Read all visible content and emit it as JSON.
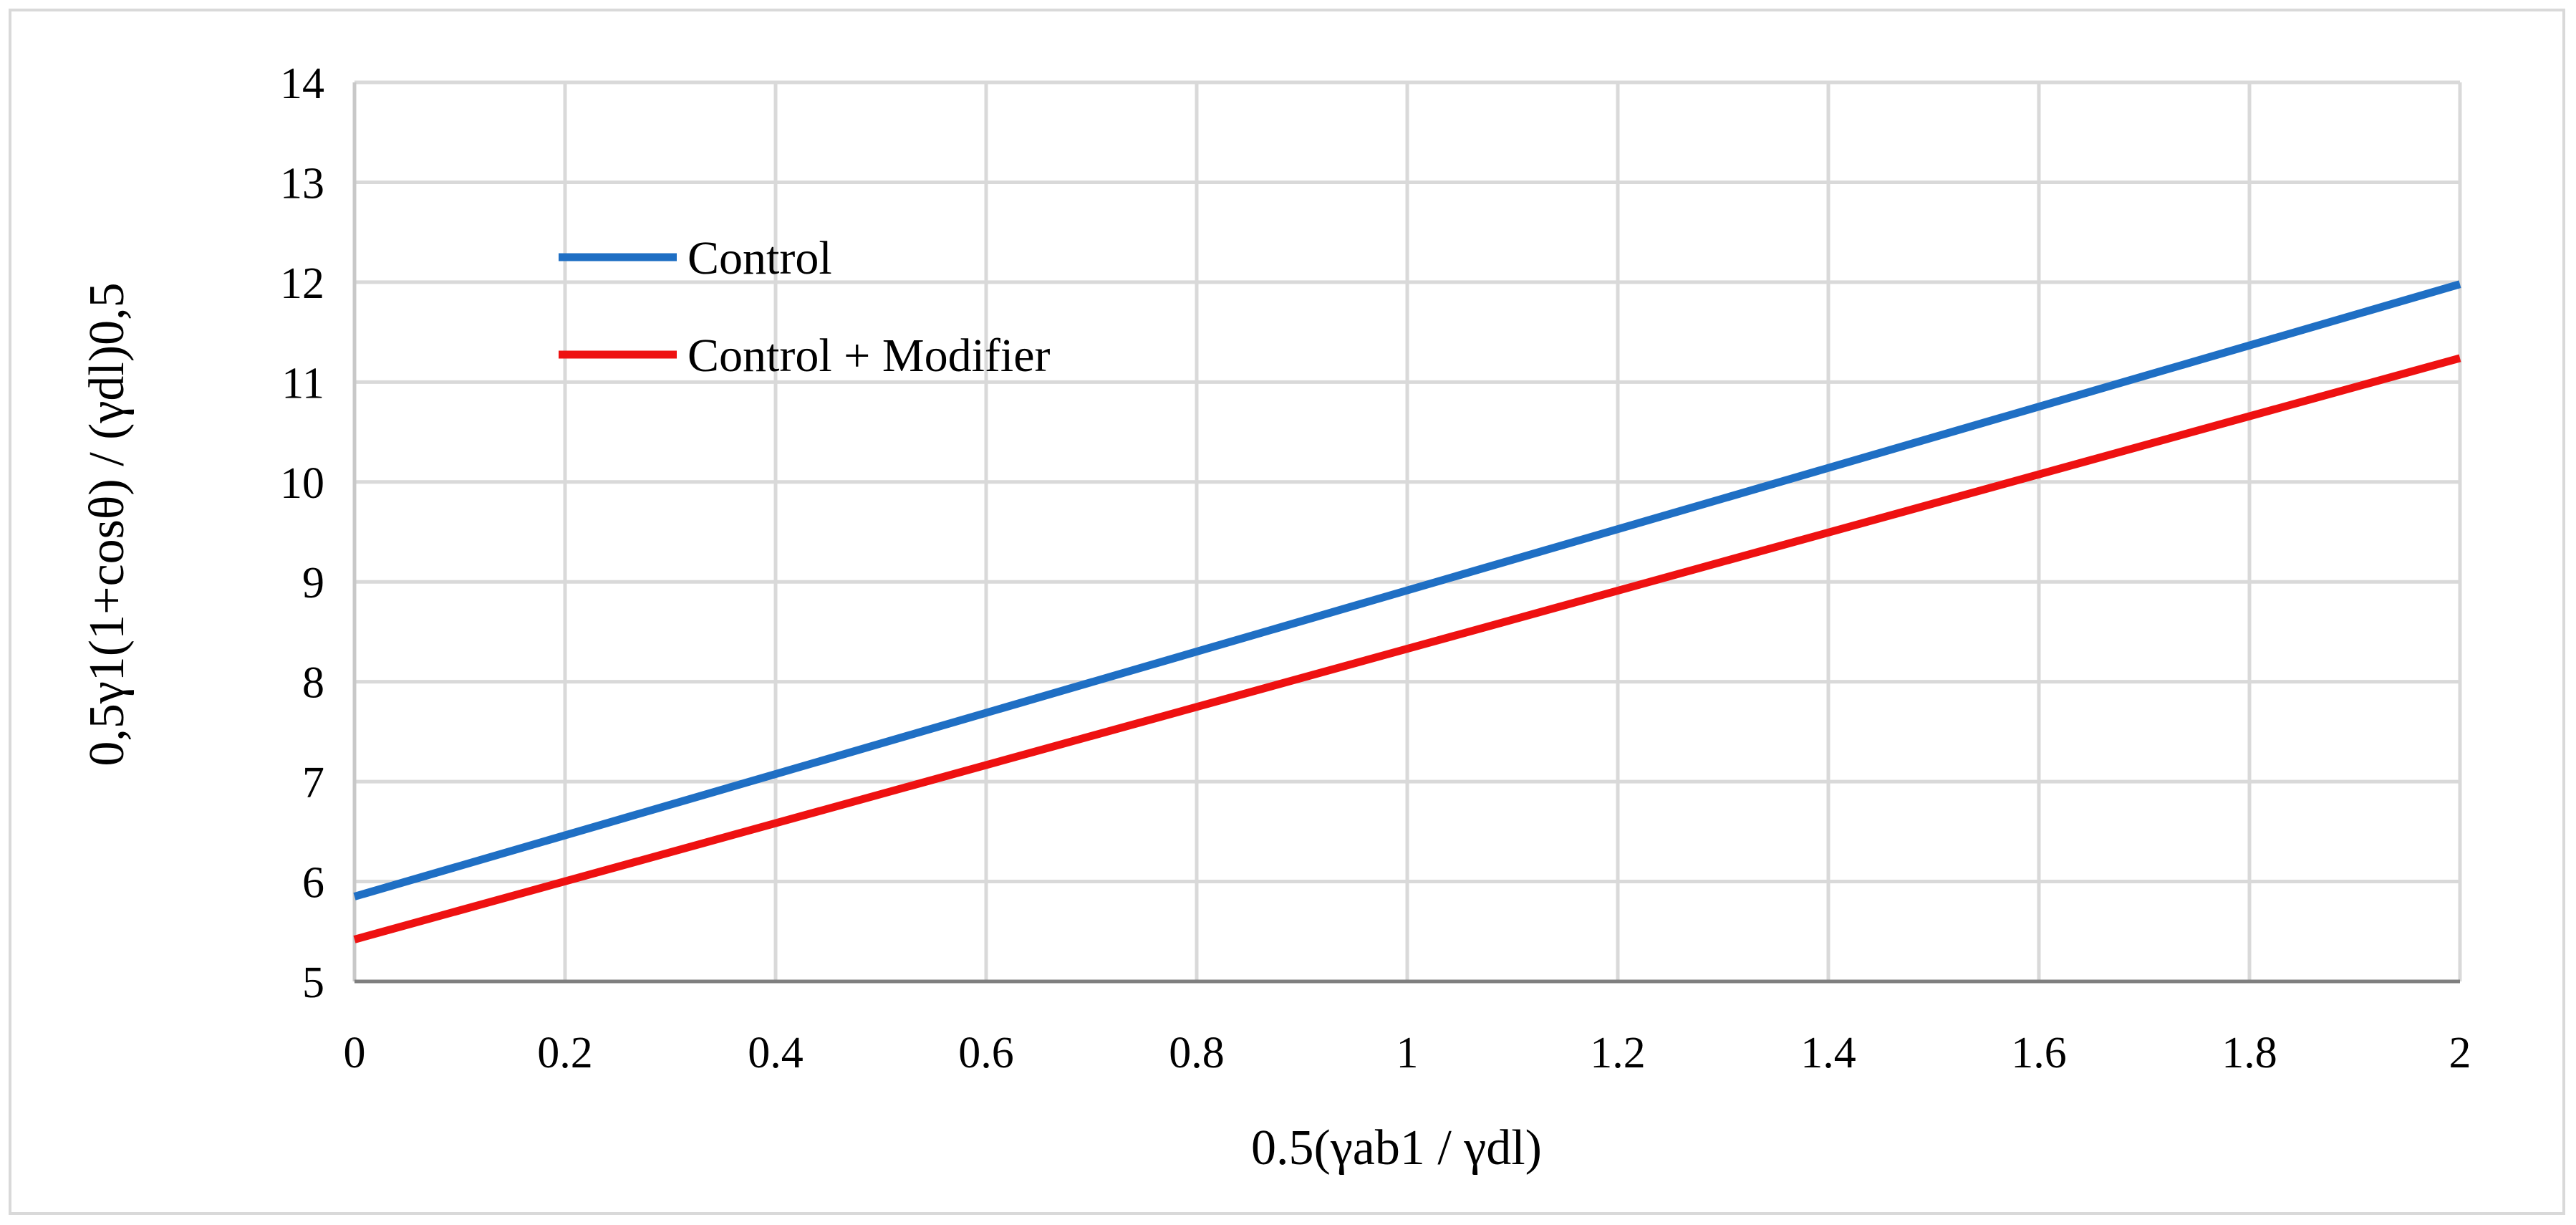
{
  "chart_data": {
    "type": "line",
    "title": "",
    "xlabel": "0.5(γab1 / γdl)",
    "ylabel": "0,5γ1(1+cosθ) / (γdl)0,5",
    "xlim": [
      0,
      2
    ],
    "ylim": [
      5,
      14
    ],
    "x_ticks": [
      0,
      0.2,
      0.4,
      0.6,
      0.8,
      1,
      1.2,
      1.4,
      1.6,
      1.8,
      2
    ],
    "x_tick_labels": [
      "0",
      "0.2",
      "0.4",
      "0.6",
      "0.8",
      "1",
      "1.2",
      "1.4",
      "1.6",
      "1.8",
      "2"
    ],
    "y_ticks": [
      5,
      6,
      7,
      8,
      9,
      10,
      11,
      12,
      13,
      14
    ],
    "y_tick_labels": [
      "5",
      "6",
      "7",
      "8",
      "9",
      "10",
      "11",
      "12",
      "13",
      "14"
    ],
    "grid": true,
    "legend_position": "top-left",
    "series": [
      {
        "name": "Control",
        "color": "#1f6fc4",
        "x": [
          0,
          2
        ],
        "y": [
          5.85,
          11.98
        ]
      },
      {
        "name": "Control + Modifier",
        "color": "#ee1111",
        "x": [
          0,
          2
        ],
        "y": [
          5.42,
          11.24
        ]
      }
    ]
  }
}
